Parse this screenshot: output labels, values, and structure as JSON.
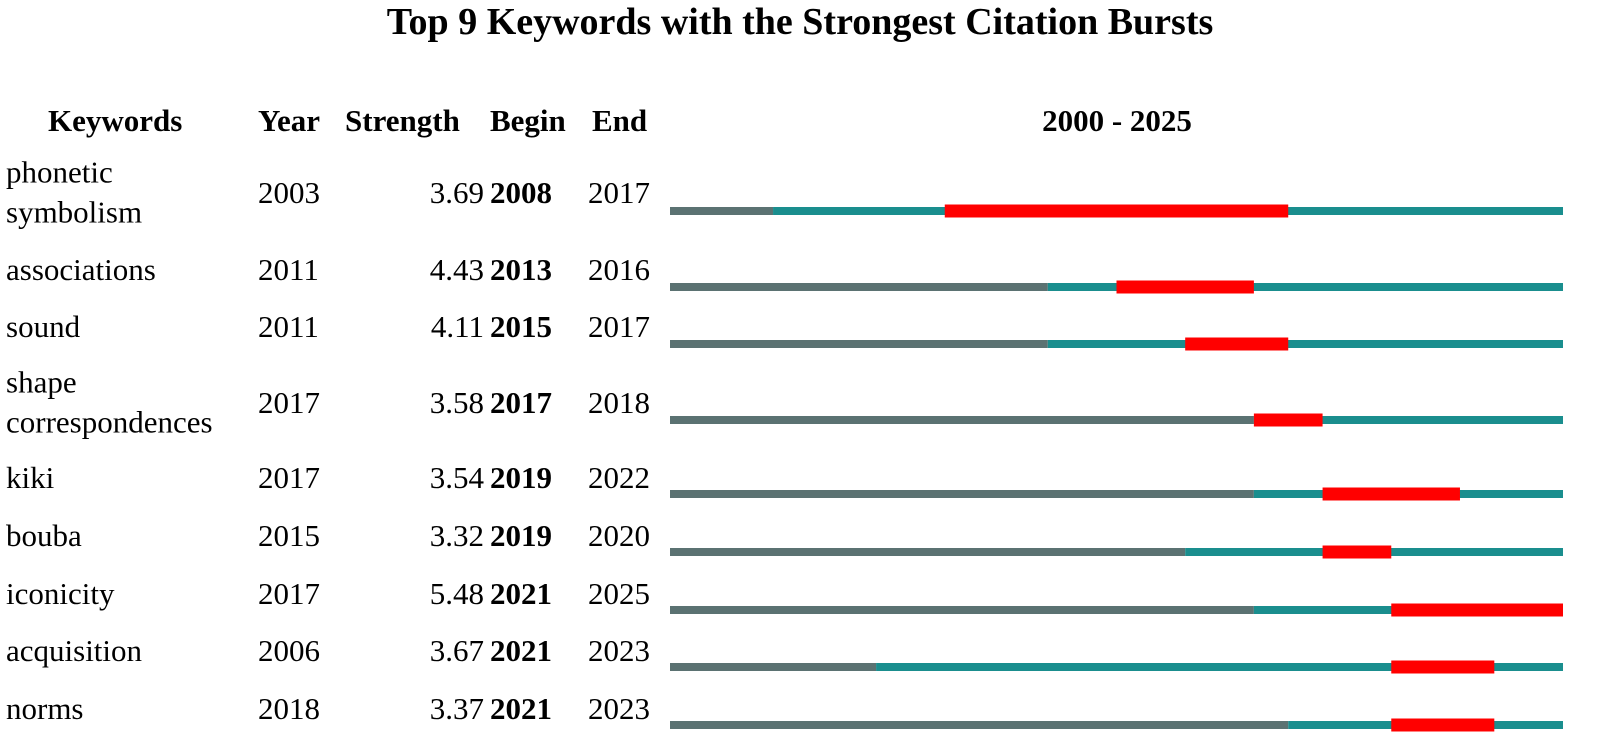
{
  "chart_data": {
    "type": "burst",
    "title": "Top 9 Keywords with the Strongest Citation Bursts",
    "headers": {
      "keyword": "Keywords",
      "year": "Year",
      "strength": "Strength",
      "begin": "Begin",
      "end": "End",
      "range": "2000 - 2025"
    },
    "xlim": [
      2000,
      2025
    ],
    "colors": {
      "before": "#5b7272",
      "after": "#1a8e8e",
      "burst": "#ff0000"
    },
    "rows": [
      {
        "keyword": "phonetic symbolism",
        "year": 2003,
        "strength": 3.69,
        "begin": 2008,
        "end": 2017
      },
      {
        "keyword": "associations",
        "year": 2011,
        "strength": 4.43,
        "begin": 2013,
        "end": 2016
      },
      {
        "keyword": "sound",
        "year": 2011,
        "strength": 4.11,
        "begin": 2015,
        "end": 2017
      },
      {
        "keyword": "shape correspondences",
        "year": 2017,
        "strength": 3.58,
        "begin": 2017,
        "end": 2018
      },
      {
        "keyword": "kiki",
        "year": 2017,
        "strength": 3.54,
        "begin": 2019,
        "end": 2022
      },
      {
        "keyword": "bouba",
        "year": 2015,
        "strength": 3.32,
        "begin": 2019,
        "end": 2020
      },
      {
        "keyword": "iconicity",
        "year": 2017,
        "strength": 5.48,
        "begin": 2021,
        "end": 2025
      },
      {
        "keyword": "acquisition",
        "year": 2006,
        "strength": 3.67,
        "begin": 2021,
        "end": 2023
      },
      {
        "keyword": "norms",
        "year": 2018,
        "strength": 3.37,
        "begin": 2021,
        "end": 2023
      }
    ]
  }
}
